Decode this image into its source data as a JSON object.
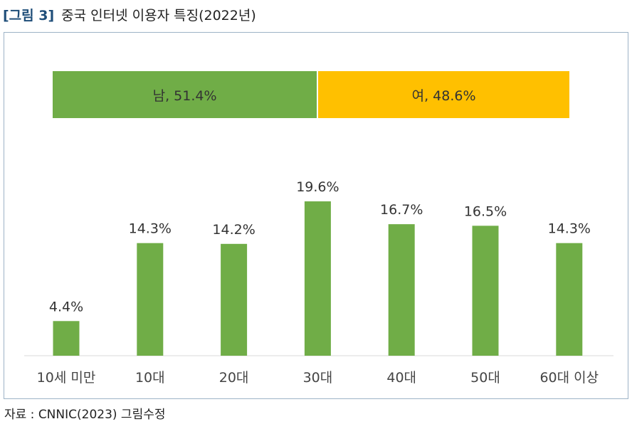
{
  "figure": {
    "label": "[그림 3]",
    "title": "중국 인터넷 이용자 특징(2022년)",
    "source": "자료 : CNNIC(2023) 그림수정"
  },
  "gender": {
    "segments": [
      {
        "label": "남, 51.4%",
        "value": 51.4,
        "color": "#70ad47"
      },
      {
        "label": "여, 48.6%",
        "value": 48.6,
        "color": "#ffc000"
      }
    ]
  },
  "chart_data": {
    "type": "bar",
    "categories": [
      "10세 미만",
      "10대",
      "20대",
      "30대",
      "40대",
      "50대",
      "60대 이상"
    ],
    "values": [
      4.4,
      14.3,
      14.2,
      19.6,
      16.7,
      16.5,
      14.3
    ],
    "data_labels": [
      "4.4%",
      "14.3%",
      "14.2%",
      "19.6%",
      "16.7%",
      "16.5%",
      "14.3%"
    ],
    "bar_color": "#70ad47",
    "axis_color": "#d9d9d9",
    "title": "",
    "xlabel": "",
    "ylabel": "",
    "grid": false
  }
}
